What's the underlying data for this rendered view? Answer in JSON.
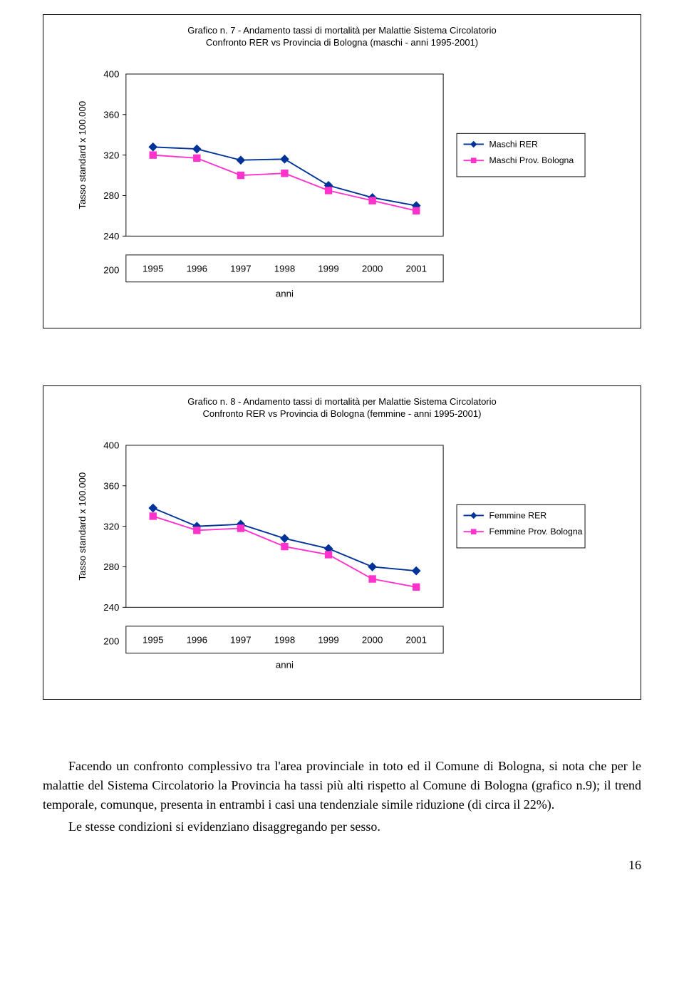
{
  "chart1": {
    "type": "line",
    "title_line1": "Grafico n. 7 - Andamento tassi di mortalità per Malattie Sistema Circolatorio",
    "title_line2": "Confronto RER vs Provincia di Bologna (maschi - anni 1995-2001)",
    "xlabel": "anni",
    "ylabel": "Tasso standard x 100.000",
    "years": [
      "1995",
      "1996",
      "1997",
      "1998",
      "1999",
      "2000",
      "2001"
    ],
    "y_ticks": [
      200,
      240,
      280,
      320,
      360,
      400
    ],
    "ylim": [
      200,
      400
    ],
    "series": [
      {
        "name": "Maschi RER",
        "label": "Maschi RER",
        "color": "#003399",
        "marker": "diamond",
        "values": [
          328,
          326,
          315,
          316,
          290,
          278,
          270
        ]
      },
      {
        "name": "Maschi Prov. Bologna",
        "label": "Maschi Prov. Bologna",
        "color": "#ff33cc",
        "marker": "square",
        "values": [
          320,
          317,
          300,
          302,
          285,
          275,
          265
        ]
      }
    ],
    "legend_pos": "right",
    "background_color": "#ffffff",
    "line_width": 2,
    "label_fontsize": 14,
    "title_fontsize": 13
  },
  "chart2": {
    "type": "line",
    "title_line1": "Grafico n. 8 - Andamento tassi di mortalità per Malattie Sistema Circolatorio",
    "title_line2": "Confronto RER vs Provincia di Bologna (femmine - anni 1995-2001)",
    "xlabel": "anni",
    "ylabel": "Tasso standard x 100.000",
    "years": [
      "1995",
      "1996",
      "1997",
      "1998",
      "1999",
      "2000",
      "2001"
    ],
    "y_ticks": [
      200,
      240,
      280,
      320,
      360,
      400
    ],
    "ylim": [
      200,
      400
    ],
    "series": [
      {
        "name": "Femmine RER",
        "label": "Femmine RER",
        "color": "#003399",
        "marker": "diamond",
        "values": [
          338,
          320,
          322,
          308,
          298,
          280,
          276
        ]
      },
      {
        "name": "Femmine Prov. Bologna",
        "label": "Femmine Prov. Bologna",
        "color": "#ff33cc",
        "marker": "square",
        "values": [
          330,
          316,
          318,
          300,
          292,
          268,
          260
        ]
      }
    ],
    "legend_pos": "right",
    "background_color": "#ffffff",
    "line_width": 2,
    "label_fontsize": 14,
    "title_fontsize": 13
  },
  "body": {
    "p1": "Facendo un confronto complessivo tra l'area provinciale in toto ed il Comune di Bologna, si nota che per le malattie del Sistema Circolatorio la Provincia ha tassi più alti rispetto al Comune di Bologna (grafico n.9); il trend temporale, comunque, presenta in entrambi i casi una tendenziale simile riduzione (di circa il 22%).",
    "p2": "Le stesse condizioni si evidenziano disaggregando per sesso."
  },
  "page_number": "16"
}
